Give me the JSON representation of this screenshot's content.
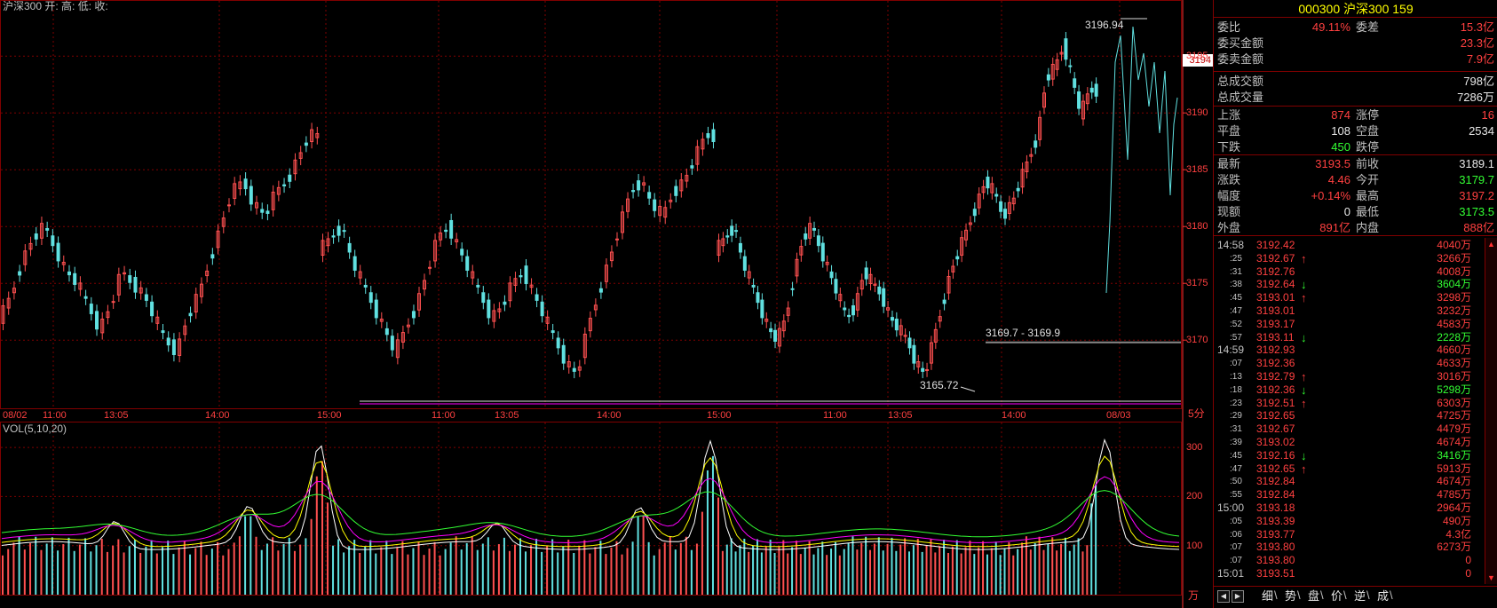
{
  "chart": {
    "title_line": "沪深300 开: 高: 低: 收:",
    "vol_title": "VOL(5,10,20)",
    "period_label": "5分",
    "vol_unit_label": "万",
    "annotations": {
      "high_label": "3196.94",
      "low_label": "3165.72",
      "range_label": "3169.7 - 3169.9",
      "current_price_tag": "3194"
    },
    "price_axis": [
      "3195",
      "3190",
      "3185",
      "3180",
      "3175",
      "3170"
    ],
    "vol_axis": [
      "300",
      "200",
      "100"
    ],
    "time_axis": [
      "08/02",
      "11:00",
      "13:05",
      "14:00",
      "15:00",
      "11:00",
      "13:05",
      "14:00",
      "15:00",
      "11:00",
      "13:05",
      "14:00",
      "08/03"
    ],
    "colors": {
      "up": "#ff5050",
      "down": "#60e0e0",
      "grid": "#800000",
      "axis": "#ff3030",
      "ma5": "#ffffff",
      "ma10": "#ffff00",
      "ma20": "#ff00ff",
      "ma30": "#33ff33"
    }
  },
  "chart_data": {
    "type": "candlestick",
    "title": "沪深300",
    "ylim": [
      3164,
      3199
    ],
    "vol_ylim": [
      0,
      340
    ],
    "segments": [
      {
        "name": "segment-1",
        "trend": [
          3172,
          3174,
          3177,
          3179,
          3180,
          3178,
          3176,
          3175,
          3173,
          3171,
          3173,
          3176,
          3175,
          3174,
          3172,
          3170,
          3169,
          3172,
          3174,
          3177,
          3180,
          3183,
          3184,
          3182,
          3181,
          3183,
          3184,
          3186,
          3188
        ]
      },
      {
        "name": "segment-2",
        "trend": [
          3178,
          3179,
          3180,
          3177,
          3175,
          3173,
          3171,
          3169,
          3171,
          3173,
          3176,
          3179,
          3180,
          3178,
          3176,
          3174,
          3172,
          3173,
          3175,
          3176,
          3174,
          3172,
          3170,
          3168,
          3167,
          3171,
          3174,
          3177,
          3180,
          3183,
          3184,
          3182,
          3181,
          3183,
          3184,
          3186,
          3188
        ]
      },
      {
        "name": "segment-3",
        "trend": [
          3178,
          3179,
          3180,
          3177,
          3175,
          3173,
          3171,
          3170,
          3172,
          3176,
          3179,
          3180,
          3178,
          3176,
          3174,
          3172,
          3173,
          3176,
          3175,
          3174,
          3172,
          3171,
          3170,
          3168,
          3167,
          3170,
          3173,
          3176,
          3178,
          3180,
          3182,
          3184,
          3183,
          3181,
          3182,
          3184,
          3186,
          3188,
          3193,
          3194,
          3196,
          3193,
          3190,
          3192
        ]
      }
    ],
    "vol_ma": [
      "5",
      "10",
      "20"
    ]
  },
  "panel": {
    "header": "000300  沪深300  159",
    "stats1": [
      {
        "label": "委比",
        "value": "49.11%",
        "label2": "委差",
        "value2": "15.3亿"
      },
      {
        "label": "委买金额",
        "value2": "23.3亿"
      },
      {
        "label": "委卖金额",
        "value2": "7.9亿"
      }
    ],
    "stats2": [
      {
        "label": "总成交额",
        "value2": "798亿"
      },
      {
        "label": "总成交量",
        "value2": "7286万"
      }
    ],
    "stats3": [
      {
        "label": "上涨",
        "value": "874",
        "label2": "涨停",
        "value2": "16"
      },
      {
        "label": "平盘",
        "value": "108",
        "label2": "空盘",
        "value2": "2534"
      },
      {
        "label": "下跌",
        "value": "450",
        "label2": "跌停",
        "value2": ""
      }
    ],
    "stats4": [
      {
        "label": "最新",
        "value": "3193.5",
        "label2": "前收",
        "value2": "3189.1"
      },
      {
        "label": "涨跌",
        "value": "4.46",
        "label2": "今开",
        "value2": "3179.7"
      },
      {
        "label": "幅度",
        "value": "+0.14%",
        "label2": "最高",
        "value2": "3197.2"
      },
      {
        "label": "现额",
        "value": "0",
        "label2": "最低",
        "value2": "3173.5"
      },
      {
        "label": "外盘",
        "value": "891亿",
        "label2": "内盘",
        "value2": "888亿"
      }
    ],
    "ticks": [
      {
        "time": "14:58",
        "big": true,
        "price": "3192.42",
        "arrow": "",
        "vol": "4040万"
      },
      {
        "time": ":25",
        "price": "3192.67",
        "arrow": "↑",
        "vol": "3266万"
      },
      {
        "time": ":31",
        "price": "3192.76",
        "arrow": "",
        "vol": "4008万"
      },
      {
        "time": ":38",
        "price": "3192.64",
        "arrow": "↓",
        "vol": "3604万"
      },
      {
        "time": ":45",
        "price": "3193.01",
        "arrow": "↑",
        "vol": "3298万"
      },
      {
        "time": ":47",
        "price": "3193.01",
        "arrow": "",
        "vol": "3232万"
      },
      {
        "time": ":52",
        "price": "3193.17",
        "arrow": "",
        "vol": "4583万"
      },
      {
        "time": ":57",
        "price": "3193.11",
        "arrow": "↓",
        "vol": "2228万"
      },
      {
        "time": "14:59",
        "big": true,
        "price": "3192.93",
        "arrow": "",
        "vol": "4660万"
      },
      {
        "time": ":07",
        "price": "3192.36",
        "arrow": "",
        "vol": "4633万"
      },
      {
        "time": ":13",
        "price": "3192.79",
        "arrow": "↑",
        "vol": "3016万"
      },
      {
        "time": ":18",
        "price": "3192.36",
        "arrow": "↓",
        "vol": "5298万"
      },
      {
        "time": ":23",
        "price": "3192.51",
        "arrow": "↑",
        "vol": "6303万"
      },
      {
        "time": ":29",
        "price": "3192.65",
        "arrow": "",
        "vol": "4725万"
      },
      {
        "time": ":31",
        "price": "3192.67",
        "arrow": "",
        "vol": "4479万"
      },
      {
        "time": ":39",
        "price": "3193.02",
        "arrow": "",
        "vol": "4674万"
      },
      {
        "time": ":45",
        "price": "3192.16",
        "arrow": "↓",
        "vol": "3416万"
      },
      {
        "time": ":47",
        "price": "3192.65",
        "arrow": "↑",
        "vol": "5913万"
      },
      {
        "time": ":50",
        "price": "3192.84",
        "arrow": "",
        "vol": "4674万"
      },
      {
        "time": ":55",
        "price": "3192.84",
        "arrow": "",
        "vol": "4785万"
      },
      {
        "time": "15:00",
        "big": true,
        "price": "3193.18",
        "arrow": "",
        "vol": "2964万"
      },
      {
        "time": ":05",
        "price": "3193.39",
        "arrow": "",
        "vol": "490万"
      },
      {
        "time": ":06",
        "price": "3193.77",
        "arrow": "",
        "vol": "4.3亿"
      },
      {
        "time": ":07",
        "price": "3193.80",
        "arrow": "",
        "vol": "6273万"
      },
      {
        "time": ":07",
        "price": "3193.80",
        "arrow": "",
        "vol": "0"
      },
      {
        "time": "15:01",
        "big": true,
        "price": "3193.51",
        "arrow": "",
        "vol": "0"
      }
    ],
    "tabs": [
      "细",
      "势",
      "盘",
      "价",
      "逆",
      "成"
    ]
  }
}
